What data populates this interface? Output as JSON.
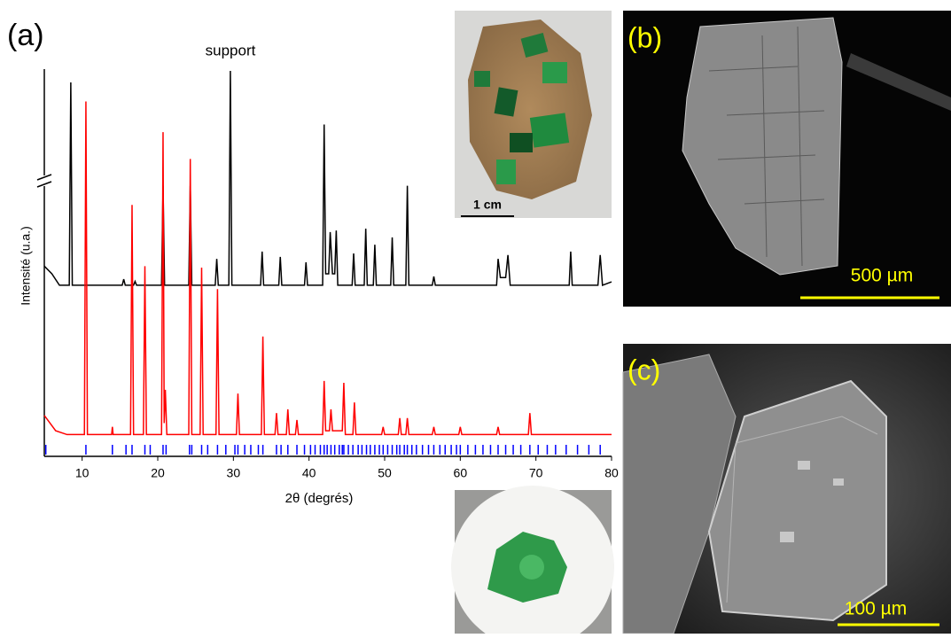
{
  "panels": {
    "a": "(a)",
    "b": "(b)",
    "c": "(c)"
  },
  "annotation": "support",
  "photo_scale": "1 cm",
  "sem_b_scale": "500 µm",
  "sem_c_scale": "100 µm",
  "chart_data": {
    "type": "line",
    "xlabel": "2θ (degrés)",
    "ylabel": "Intensité (u.a.)",
    "xlim": [
      5,
      80
    ],
    "xticks": [
      10,
      20,
      30,
      40,
      50,
      60,
      70,
      80
    ],
    "ylim": [
      0,
      100
    ],
    "series": [
      {
        "color": "#000000",
        "x": [
          5,
          6,
          7,
          8.3,
          8.5,
          8.7,
          15.3,
          15.5,
          15.7,
          16.8,
          17,
          17.2,
          20.5,
          20.7,
          20.9,
          24.1,
          24.3,
          24.5,
          27.6,
          27.8,
          28,
          29.4,
          29.6,
          29.8,
          33.6,
          33.8,
          34,
          36,
          36.2,
          36.4,
          39.4,
          39.6,
          39.8,
          41.8,
          42,
          42.2,
          42.6,
          42.8,
          43.1,
          43.4,
          43.6,
          43.8,
          45.7,
          45.9,
          46.1,
          47.3,
          47.5,
          47.7,
          48.5,
          48.7,
          48.9,
          50.8,
          51,
          51.2,
          52.8,
          53,
          53.2,
          56.3,
          56.5,
          56.7,
          64.8,
          65,
          65.3,
          66,
          66.3,
          66.6,
          74.4,
          74.6,
          74.8,
          78.2,
          78.5,
          78.8,
          80
        ],
        "values": [
          49,
          47,
          44,
          44,
          97,
          44,
          44,
          45.6,
          44,
          44,
          45,
          44,
          44,
          70,
          44,
          44,
          70,
          44,
          44,
          50.9,
          44,
          44,
          100,
          44,
          44,
          52.8,
          44,
          44,
          51.4,
          44,
          44,
          50,
          44,
          44,
          86,
          47,
          47,
          57.9,
          47,
          47,
          58.3,
          44,
          44,
          52.3,
          44,
          44,
          58.8,
          44,
          44,
          54.6,
          44,
          44,
          56.5,
          44,
          44,
          70,
          44,
          44,
          46.3,
          44,
          44,
          50.9,
          46,
          46,
          51.9,
          44,
          44,
          52.8,
          44,
          44,
          51.9,
          44,
          44.9
        ]
      },
      {
        "color": "#ff0000",
        "x": [
          5,
          6.5,
          8,
          10.3,
          10.5,
          10.7,
          13.9,
          14,
          14.1,
          16.4,
          16.6,
          16.8,
          18.1,
          18.3,
          18.5,
          20.5,
          20.7,
          20.85,
          21,
          21.2,
          24.1,
          24.3,
          24.5,
          25.6,
          25.8,
          26,
          27.7,
          27.9,
          28.1,
          30.4,
          30.6,
          30.8,
          33.7,
          33.9,
          34.1,
          35.5,
          35.7,
          35.9,
          37,
          37.2,
          37.4,
          38.2,
          38.4,
          38.6,
          41.8,
          42,
          42.2,
          42.7,
          42.9,
          43.1,
          44.4,
          44.6,
          44.8,
          45.8,
          46,
          46.2,
          49.6,
          49.8,
          50,
          51.8,
          52,
          52.2,
          52.8,
          53,
          53.2,
          56.3,
          56.5,
          56.7,
          59.8,
          60,
          60.2,
          64.8,
          65,
          65.2,
          69,
          69.2,
          69.4,
          80
        ],
        "values": [
          10,
          6,
          5,
          5,
          92,
          5,
          5,
          7,
          5,
          5,
          65,
          5,
          5,
          49,
          5,
          5,
          84,
          8,
          16.7,
          5,
          5,
          77,
          5,
          5,
          48.6,
          5,
          5,
          43,
          5,
          5,
          15.7,
          5,
          5,
          30.6,
          5,
          5,
          10.6,
          5,
          5,
          11.6,
          5,
          5,
          8.8,
          5,
          5,
          19,
          6,
          6,
          11.6,
          6,
          6,
          18.5,
          5,
          5,
          13.4,
          5,
          5,
          7,
          5,
          5,
          9.3,
          5,
          5,
          9.3,
          5,
          5,
          7,
          5,
          5,
          7,
          5,
          5,
          7,
          5,
          5,
          10.6,
          5,
          5
        ]
      }
    ],
    "reflections": {
      "color": "#0000ff",
      "x": [
        5.2,
        10.5,
        14,
        15.8,
        16.6,
        18.3,
        19,
        20.7,
        21.1,
        24.2,
        24.5,
        25.8,
        26.6,
        27.9,
        29,
        30.2,
        30.6,
        31.5,
        32.3,
        33.3,
        33.9,
        35.7,
        36.3,
        37.2,
        38.4,
        39.4,
        40.2,
        40.8,
        41.5,
        42,
        42.4,
        42.9,
        43.4,
        44,
        44.4,
        44.6,
        45.2,
        45.8,
        46.5,
        47,
        47.6,
        48.1,
        48.7,
        49.3,
        49.8,
        50.4,
        51,
        51.6,
        52,
        52.6,
        53,
        53.6,
        54.2,
        55,
        55.8,
        56.5,
        57.3,
        58,
        58.8,
        59.5,
        60,
        61,
        62,
        63,
        64,
        65,
        66,
        67,
        68,
        69.2,
        70.3,
        71.5,
        72.6,
        74,
        75.5,
        77,
        78.5
      ]
    }
  }
}
